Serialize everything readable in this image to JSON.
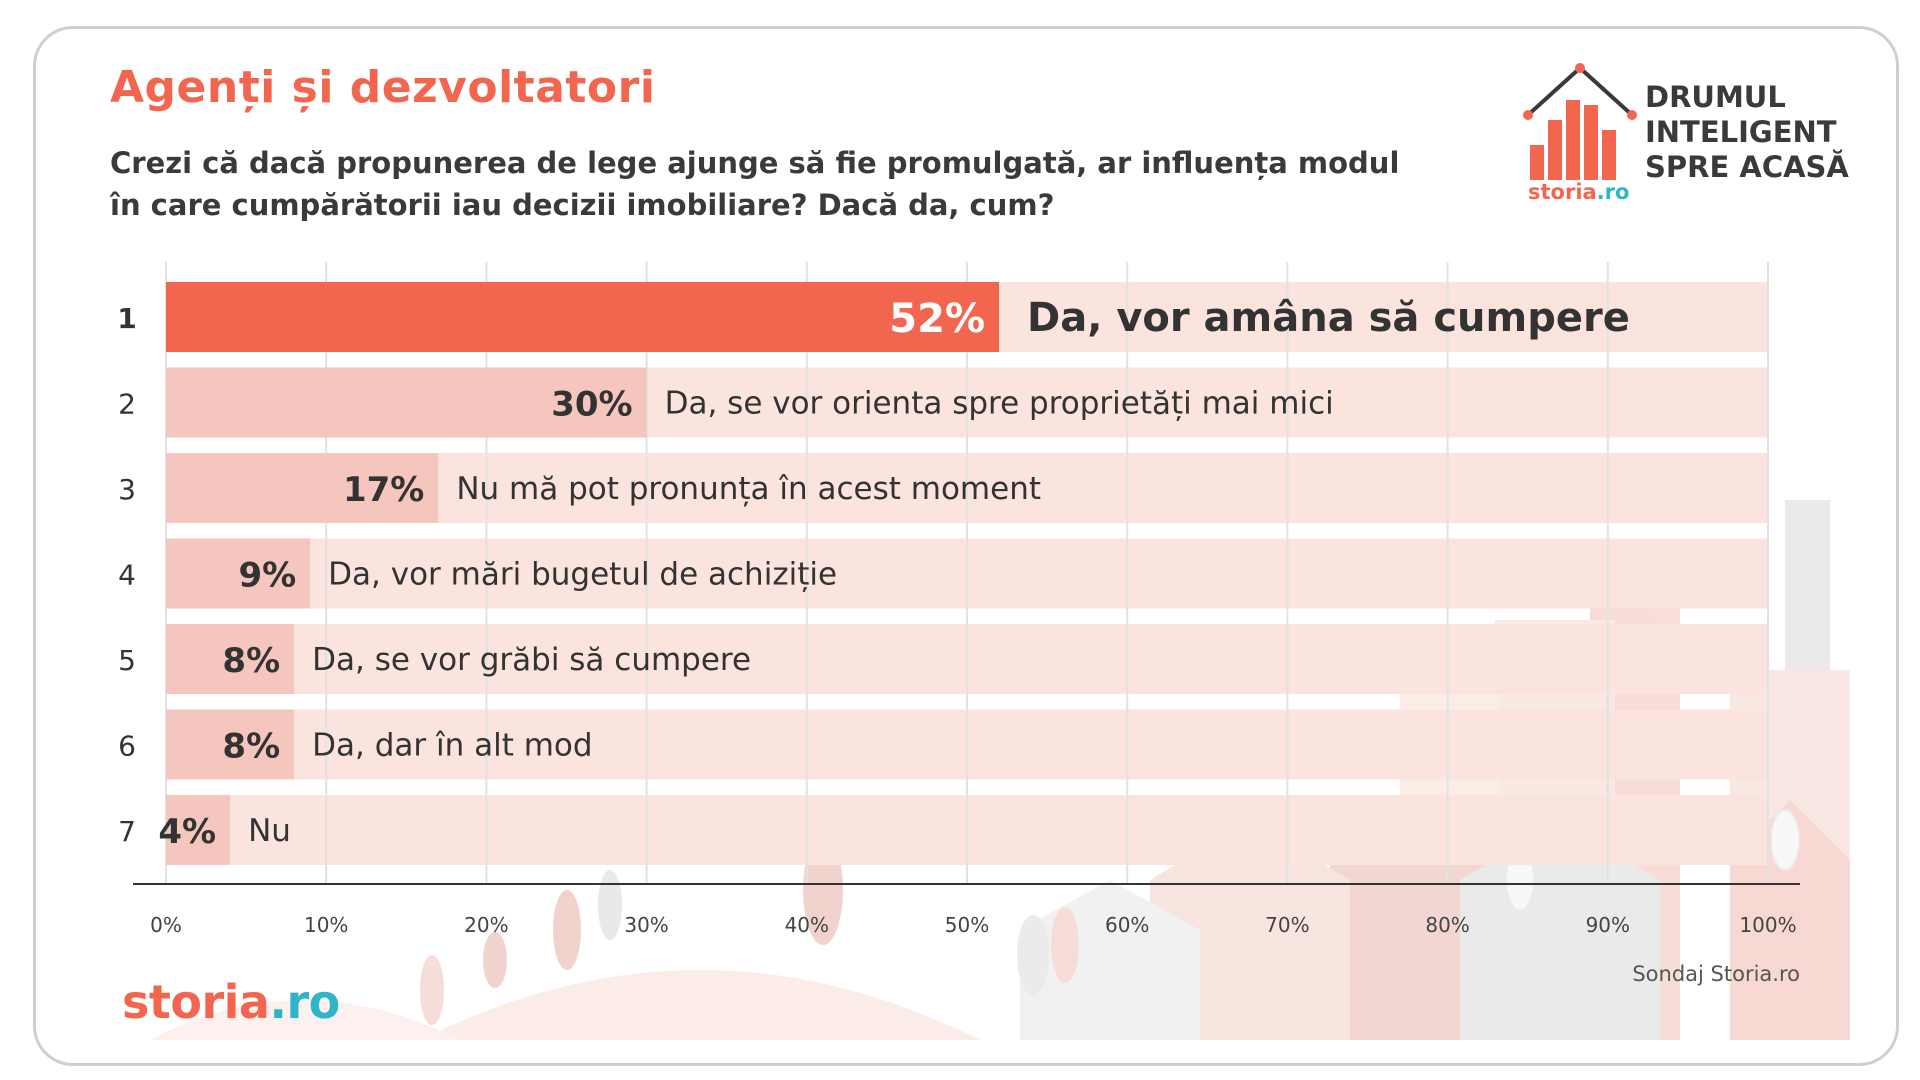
{
  "header": {
    "title": "Agenți și dezvoltatori",
    "question": "Crezi că dacă propunerea de lege ajunge să fie promulgată, ar influența modul în care cumpărătorii iau decizii imobiliare? Dacă da, cum?"
  },
  "logo": {
    "line1": "DRUMUL",
    "line2": "INTELIGENT",
    "line3": "SPRE ACASĂ",
    "brand_part1": "storia",
    "brand_part2": ".ro"
  },
  "footer": {
    "brand_part1": "storia",
    "brand_part2": ".ro",
    "source": "Sondaj Storia.ro"
  },
  "colors": {
    "accent": "#f2654e",
    "bar_light": "#f5c6bd",
    "track": "#fbe3de",
    "text_dark": "#333333",
    "brand_teal": "#2fb5c8"
  },
  "chart_data": {
    "type": "bar",
    "orientation": "horizontal",
    "categories": [
      "1",
      "2",
      "3",
      "4",
      "5",
      "6",
      "7"
    ],
    "values": [
      52,
      30,
      17,
      9,
      8,
      8,
      4
    ],
    "value_labels": [
      "52%",
      "30%",
      "17%",
      "9%",
      "8%",
      "8%",
      "4%"
    ],
    "bar_labels": [
      "Da, vor amâna să cumpere",
      "Da, se vor orienta spre proprietăți mai mici",
      "Nu mă pot pronunța în acest moment",
      "Da, vor mări bugetul de achiziție",
      "Da, se vor grăbi să cumpere",
      "Da, dar în alt mod",
      "Nu"
    ],
    "xlim": [
      0,
      100
    ],
    "x_ticks": [
      0,
      10,
      20,
      30,
      40,
      50,
      60,
      70,
      80,
      90,
      100
    ],
    "x_tick_labels": [
      "0%",
      "10%",
      "20%",
      "30%",
      "40%",
      "50%",
      "60%",
      "70%",
      "80%",
      "90%",
      "100%"
    ],
    "grid": true,
    "highlight_index": 0
  }
}
